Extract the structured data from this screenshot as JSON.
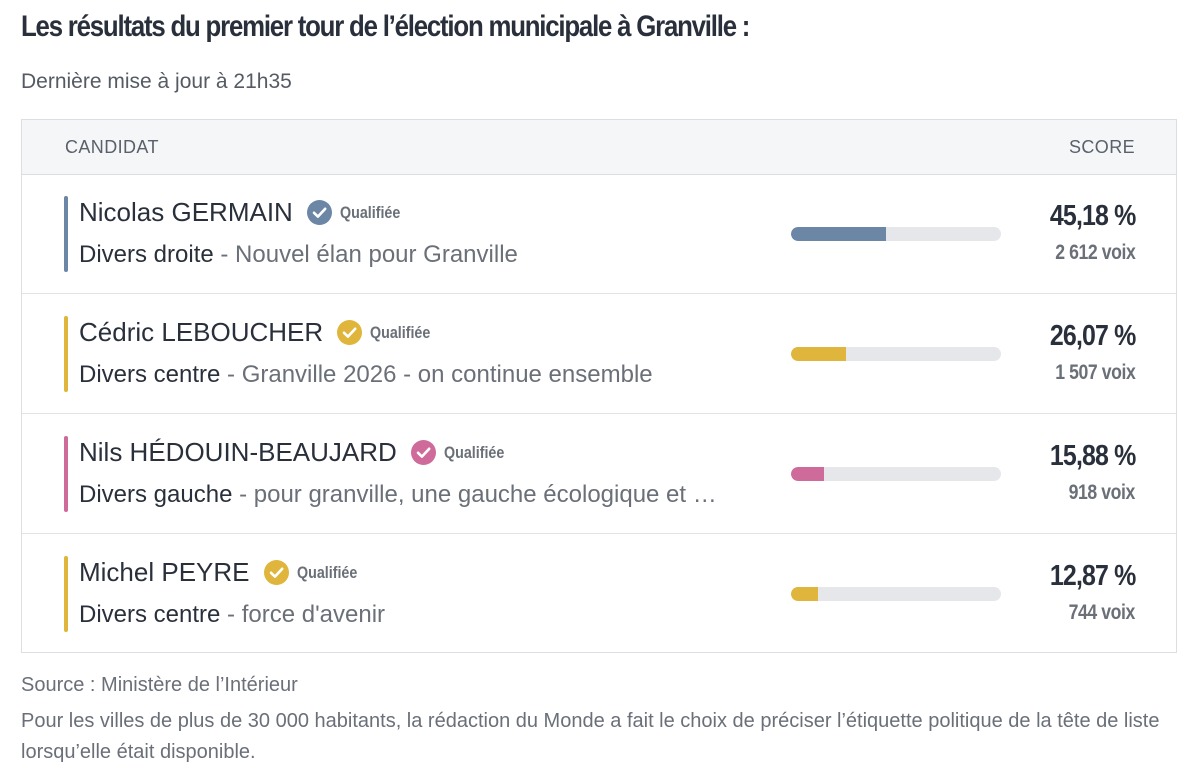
{
  "title": "Les résultats du premier tour de l’élection municipale à Granville :",
  "subtitle": "Dernière mise à jour à 21h35",
  "table": {
    "header_candidate": "CANDIDAT",
    "header_score": "SCORE"
  },
  "chart_data": {
    "type": "bar",
    "orientation": "horizontal",
    "ylim": [
      0,
      100
    ],
    "unit": "%",
    "categories": [
      "Nicolas GERMAIN",
      "Cédric LEBOUCHER",
      "Nils HÉDOUIN-BEAUJARD",
      "Michel PEYRE"
    ],
    "values": [
      45.18,
      26.07,
      15.88,
      12.87
    ],
    "candidates": [
      {
        "name": "Nicolas GERMAIN",
        "status": "Qualifiée",
        "nuance": "Divers droite",
        "separator": " - ",
        "list": "Nouvel élan pour Granville",
        "percent": 45.18,
        "score_label": "45,18 %",
        "votes": 2612,
        "votes_label": "2 612 voix",
        "color": "#6c86a6"
      },
      {
        "name": "Cédric LEBOUCHER",
        "status": "Qualifiée",
        "nuance": "Divers centre",
        "separator": " - ",
        "list": "Granville 2026 - on continue ensemble",
        "percent": 26.07,
        "score_label": "26,07 %",
        "votes": 1507,
        "votes_label": "1 507 voix",
        "color": "#e0b53c"
      },
      {
        "name": "Nils HÉDOUIN-BEAUJARD",
        "status": "Qualifiée",
        "nuance": "Divers gauche",
        "separator": " - ",
        "list": "pour granville, une gauche écologique et …",
        "percent": 15.88,
        "score_label": "15,88 %",
        "votes": 918,
        "votes_label": "918 voix",
        "color": "#cf6b9a"
      },
      {
        "name": "Michel PEYRE",
        "status": "Qualifiée",
        "nuance": "Divers centre",
        "separator": " - ",
        "list": "force d'avenir",
        "percent": 12.87,
        "score_label": "12,87 %",
        "votes": 744,
        "votes_label": "744 voix",
        "color": "#e0b53c"
      }
    ]
  },
  "footer": {
    "source": "Source : Ministère de l’Intérieur",
    "note": "Pour les villes de plus de 30 000 habitants, la rédaction du Monde a fait le choix de préciser l’étiquette politique de la tête de liste lorsqu’elle était disponible."
  },
  "colors": {
    "track": "#e6e7ea",
    "header_bg": "#f5f6f7",
    "border": "#dcdee3"
  }
}
